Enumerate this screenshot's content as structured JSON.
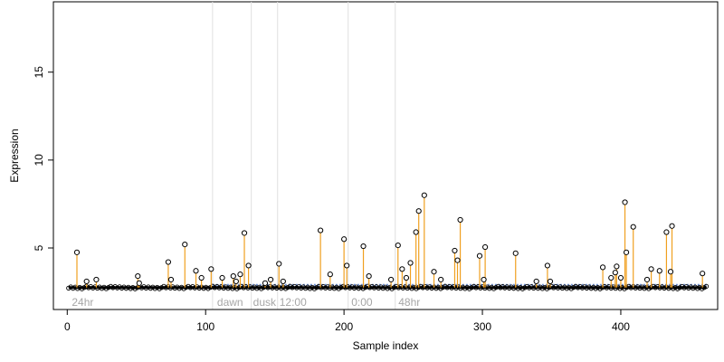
{
  "chart_data": {
    "type": "scatter",
    "title": "",
    "xlabel": "Sample index",
    "ylabel": "Expression",
    "xlim": [
      -10,
      470
    ],
    "ylim": [
      1.5,
      19
    ],
    "x_ticks": [
      0,
      100,
      200,
      300,
      400
    ],
    "y_ticks": [
      5,
      10,
      15
    ],
    "grid": false,
    "colors": {
      "stem": "#f0a020",
      "baseline": "#6f8fd0",
      "point_stroke": "#000000",
      "region_line": "#e0e0e0",
      "region_text": "#a6a6a6"
    },
    "baseline": 2.75,
    "region_lines": [
      105,
      133,
      152,
      203,
      237
    ],
    "region_labels": [
      {
        "text": "24hr",
        "x": 2
      },
      {
        "text": "dawn",
        "x": 107
      },
      {
        "text": "dusk",
        "x": 133
      },
      {
        "text": "12:00",
        "x": 152
      },
      {
        "text": "0:00",
        "x": 204
      },
      {
        "text": "48hr",
        "x": 238
      }
    ],
    "points": [
      [
        7,
        4.75
      ],
      [
        14,
        3.1
      ],
      [
        21,
        3.2
      ],
      [
        51,
        3.4
      ],
      [
        52,
        3.0
      ],
      [
        73,
        4.2
      ],
      [
        75,
        3.2
      ],
      [
        85,
        5.2
      ],
      [
        93,
        3.7
      ],
      [
        97,
        3.3
      ],
      [
        104,
        3.8
      ],
      [
        112,
        3.3
      ],
      [
        120,
        3.4
      ],
      [
        122,
        3.1
      ],
      [
        125,
        3.5
      ],
      [
        128,
        5.85
      ],
      [
        131,
        4.0
      ],
      [
        143,
        3.0
      ],
      [
        147,
        3.2
      ],
      [
        153,
        4.1
      ],
      [
        156,
        3.1
      ],
      [
        183,
        6.0
      ],
      [
        190,
        3.5
      ],
      [
        200,
        5.5
      ],
      [
        202,
        4.0
      ],
      [
        214,
        5.1
      ],
      [
        218,
        3.4
      ],
      [
        234,
        3.2
      ],
      [
        239,
        5.15
      ],
      [
        242,
        3.8
      ],
      [
        245,
        3.3
      ],
      [
        248,
        4.15
      ],
      [
        252,
        5.9
      ],
      [
        254,
        7.1
      ],
      [
        258,
        8.0
      ],
      [
        265,
        3.65
      ],
      [
        270,
        3.2
      ],
      [
        280,
        4.85
      ],
      [
        282,
        4.3
      ],
      [
        284,
        6.6
      ],
      [
        298,
        4.55
      ],
      [
        302,
        5.05
      ],
      [
        301,
        3.2
      ],
      [
        324,
        4.7
      ],
      [
        339,
        3.1
      ],
      [
        347,
        4.0
      ],
      [
        349,
        3.1
      ],
      [
        387,
        3.9
      ],
      [
        393,
        3.3
      ],
      [
        396,
        3.6
      ],
      [
        397,
        3.95
      ],
      [
        400,
        3.3
      ],
      [
        403,
        7.6
      ],
      [
        404,
        4.75
      ],
      [
        409,
        6.2
      ],
      [
        419,
        3.2
      ],
      [
        422,
        3.8
      ],
      [
        428,
        3.7
      ],
      [
        433,
        5.9
      ],
      [
        436,
        3.65
      ],
      [
        437,
        6.25
      ],
      [
        459,
        3.55
      ]
    ]
  }
}
